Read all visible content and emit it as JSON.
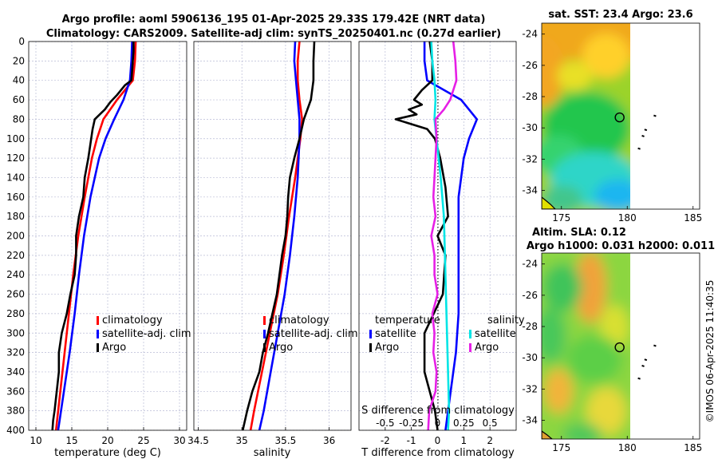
{
  "figure": {
    "title_line1": "Argo profile: aoml 5906136_195 01-Apr-2025 29.33S 179.42E (NRT data)",
    "title_line2": "Climatology: CARS2009. Satellite-adj clim: synTS_20250401.nc (0.27d earlier)",
    "sst_title": "sat. SST: 23.4 Argo: 23.6",
    "sla_title1": "Altim. SLA: 0.12",
    "sla_title2": "Argo h1000: 0.031 h2000: 0.011",
    "watermark": "©IMOS 06-Apr-2025 11:40:35"
  },
  "colors": {
    "climatology": "#ff0000",
    "satellite": "#0000ff",
    "argo": "#000000",
    "salinity_sat": "#00e5e5",
    "salinity_argo": "#e61fe6",
    "grid": "#b9bcd6"
  },
  "chart_data": [
    {
      "type": "line",
      "panel": "temperature",
      "xlabel": "temperature (deg C)",
      "ylabel": "",
      "xlim": [
        9,
        31
      ],
      "ylim": [
        400,
        0
      ],
      "grid": true,
      "xticks": [
        "10",
        "15",
        "20",
        "25",
        "30"
      ],
      "xtick_values": [
        10,
        15,
        20,
        25,
        30
      ],
      "yticks": [
        "0",
        "20",
        "40",
        "60",
        "80",
        "100",
        "120",
        "140",
        "160",
        "180",
        "200",
        "220",
        "240",
        "260",
        "280",
        "300",
        "320",
        "340",
        "360",
        "380",
        "400"
      ],
      "ytick_values": [
        0,
        20,
        40,
        60,
        80,
        100,
        120,
        140,
        160,
        180,
        200,
        220,
        240,
        260,
        280,
        300,
        320,
        340,
        360,
        380,
        400
      ],
      "legend": [
        "climatology",
        "satellite-adj. clim",
        "Argo"
      ],
      "legend_position": "bottom-center",
      "series": [
        {
          "name": "climatology",
          "color": "#ff0000",
          "y": [
            0,
            20,
            40,
            60,
            80,
            100,
            120,
            160,
            200,
            240,
            280,
            320,
            360,
            400
          ],
          "values": [
            23.9,
            23.8,
            23.5,
            21.3,
            19.4,
            18.5,
            17.8,
            16.8,
            15.9,
            15.2,
            14.6,
            14.0,
            13.4,
            12.8
          ]
        },
        {
          "name": "satellite-adj. clim",
          "color": "#0000ff",
          "y": [
            0,
            20,
            40,
            60,
            80,
            100,
            120,
            160,
            200,
            240,
            280,
            320,
            360,
            400
          ],
          "values": [
            23.4,
            23.3,
            23.1,
            22.2,
            20.9,
            19.7,
            18.8,
            17.6,
            16.7,
            16.0,
            15.4,
            14.7,
            13.9,
            13.1
          ]
        },
        {
          "name": "Argo",
          "color": "#000000",
          "y": [
            0,
            10,
            20,
            30,
            40,
            45,
            55,
            62,
            70,
            80,
            90,
            100,
            120,
            140,
            160,
            180,
            200,
            220,
            240,
            260,
            280,
            300,
            320,
            340,
            360,
            380,
            390,
            400
          ],
          "values": [
            23.6,
            23.6,
            23.5,
            23.4,
            23.3,
            22.4,
            21.3,
            20.4,
            19.6,
            18.2,
            17.9,
            17.7,
            17.3,
            16.8,
            16.6,
            16.0,
            15.6,
            15.6,
            15.4,
            14.8,
            14.3,
            13.6,
            13.2,
            13.2,
            12.9,
            12.6,
            12.4,
            12.3
          ]
        }
      ]
    },
    {
      "type": "line",
      "panel": "salinity",
      "xlabel": "salinity",
      "ylabel": "",
      "xlim": [
        34.45,
        36.25
      ],
      "ylim": [
        400,
        0
      ],
      "grid": true,
      "xticks": [
        "34.5",
        "35",
        "35.5",
        "36"
      ],
      "xtick_values": [
        34.5,
        35,
        35.5,
        36
      ],
      "legend": [
        "climatology",
        "satellite-adj. clim",
        "Argo"
      ],
      "legend_position": "bottom-center",
      "series": [
        {
          "name": "climatology",
          "color": "#ff0000",
          "y": [
            0,
            20,
            40,
            60,
            80,
            100,
            140,
            180,
            220,
            260,
            300,
            340,
            380,
            400
          ],
          "values": [
            35.66,
            35.64,
            35.64,
            35.66,
            35.69,
            35.67,
            35.61,
            35.54,
            35.48,
            35.41,
            35.32,
            35.23,
            35.14,
            35.1
          ]
        },
        {
          "name": "satellite-adj. clim",
          "color": "#0000ff",
          "y": [
            0,
            20,
            40,
            60,
            80,
            100,
            140,
            180,
            220,
            260,
            300,
            340,
            380,
            400
          ],
          "values": [
            35.61,
            35.6,
            35.62,
            35.64,
            35.66,
            35.66,
            35.64,
            35.6,
            35.55,
            35.49,
            35.41,
            35.33,
            35.25,
            35.2
          ]
        },
        {
          "name": "Argo",
          "color": "#000000",
          "y": [
            0,
            20,
            40,
            60,
            80,
            100,
            120,
            140,
            160,
            180,
            200,
            220,
            240,
            260,
            280,
            300,
            320,
            340,
            360,
            380,
            400
          ],
          "values": [
            35.83,
            35.82,
            35.82,
            35.79,
            35.71,
            35.66,
            35.6,
            35.55,
            35.53,
            35.52,
            35.5,
            35.46,
            35.43,
            35.4,
            35.35,
            35.3,
            35.24,
            35.2,
            35.12,
            35.06,
            35.01
          ]
        }
      ]
    },
    {
      "type": "line",
      "panel": "differences",
      "xlabel": "T difference from climatology",
      "xlabel2": "S difference from climatology",
      "xlim": [
        -3,
        3
      ],
      "ylim": [
        400,
        0
      ],
      "grid": true,
      "xticks": [
        "-2",
        "-1",
        "0",
        "1",
        "2"
      ],
      "xtick_values": [
        -2,
        -1,
        0,
        1,
        2
      ],
      "xticks2": [
        "-0.5",
        "-0.25",
        "0",
        "0.25",
        "0.5"
      ],
      "xtick2_values": [
        -0.5,
        -0.25,
        0,
        0.25,
        0.5
      ],
      "legend_titles": [
        "temperature",
        "salinity"
      ],
      "legend": [
        "satellite",
        "Argo",
        "satellite",
        "Argo"
      ],
      "legend_position": "bottom",
      "series": [
        {
          "name": "temperature satellite",
          "color": "#0000ff",
          "y": [
            0,
            20,
            40,
            60,
            80,
            100,
            120,
            160,
            200,
            240,
            280,
            320,
            360,
            400
          ],
          "values": [
            -0.5,
            -0.5,
            -0.4,
            0.9,
            1.5,
            1.2,
            1.0,
            0.8,
            0.8,
            0.8,
            0.8,
            0.7,
            0.5,
            0.3
          ]
        },
        {
          "name": "temperature Argo",
          "color": "#000000",
          "y": [
            0,
            20,
            40,
            50,
            60,
            65,
            70,
            75,
            80,
            85,
            90,
            100,
            120,
            150,
            180,
            200,
            220,
            260,
            300,
            340,
            380,
            400
          ],
          "values": [
            -0.3,
            -0.2,
            -0.2,
            -0.6,
            -0.9,
            -0.6,
            -1.1,
            -0.8,
            -1.6,
            -1.0,
            -0.4,
            -0.1,
            0.1,
            0.3,
            0.4,
            0.0,
            0.3,
            0.2,
            -0.5,
            -0.5,
            -0.1,
            0.0
          ]
        },
        {
          "name": "salinity satellite",
          "color": "#00e5e5",
          "y": [
            0,
            20,
            40,
            60,
            80,
            100,
            140,
            180,
            220,
            260,
            300,
            340,
            380,
            400
          ],
          "values": [
            -0.06,
            -0.05,
            -0.03,
            -0.02,
            -0.03,
            -0.01,
            0.03,
            0.06,
            0.07,
            0.08,
            0.09,
            0.1,
            0.11,
            0.1
          ]
        },
        {
          "name": "salinity Argo",
          "color": "#e61fe6",
          "y": [
            0,
            20,
            40,
            60,
            70,
            80,
            100,
            120,
            140,
            160,
            180,
            200,
            220,
            240,
            260,
            280,
            300,
            320,
            340,
            360,
            380,
            400
          ],
          "values": [
            0.15,
            0.17,
            0.18,
            0.12,
            0.06,
            -0.02,
            -0.01,
            -0.02,
            -0.03,
            -0.04,
            -0.02,
            -0.06,
            -0.03,
            -0.03,
            0.0,
            -0.05,
            -0.03,
            -0.04,
            -0.01,
            -0.02,
            -0.08,
            -0.09
          ]
        }
      ]
    },
    {
      "type": "heatmap",
      "panel": "sst_map",
      "title": "sat. SST: 23.4 Argo: 23.6",
      "xlim": [
        173.5,
        185.5
      ],
      "ylim": [
        -35.2,
        -23.3
      ],
      "xticks": [
        "175",
        "180",
        "185"
      ],
      "xtick_values": [
        175,
        180,
        185
      ],
      "yticks": [
        "-24",
        "-26",
        "-28",
        "-30",
        "-32",
        "-34"
      ],
      "ytick_values": [
        -24,
        -26,
        -28,
        -30,
        -32,
        -34
      ],
      "data_extent_lon": [
        173.5,
        180
      ],
      "argo_position": [
        179.42,
        -29.33
      ],
      "islands": [
        [
          182.1,
          -29.2
        ],
        [
          181.4,
          -30.1
        ],
        [
          181.2,
          -30.5
        ],
        [
          180.9,
          -31.3
        ]
      ]
    },
    {
      "type": "heatmap",
      "panel": "sla_map",
      "title": "Altim. SLA: 0.12",
      "xlim": [
        173.5,
        185.5
      ],
      "ylim": [
        -35.2,
        -23.3
      ],
      "xticks": [
        "175",
        "180",
        "185"
      ],
      "xtick_values": [
        175,
        180,
        185
      ],
      "yticks": [
        "-24",
        "-26",
        "-28",
        "-30",
        "-32",
        "-34"
      ],
      "ytick_values": [
        -24,
        -26,
        -28,
        -30,
        -32,
        -34
      ],
      "data_extent_lon": [
        173.5,
        180
      ],
      "argo_position": [
        179.42,
        -29.33
      ],
      "islands": [
        [
          182.1,
          -29.2
        ],
        [
          181.4,
          -30.1
        ],
        [
          181.2,
          -30.5
        ],
        [
          180.9,
          -31.3
        ]
      ]
    }
  ]
}
